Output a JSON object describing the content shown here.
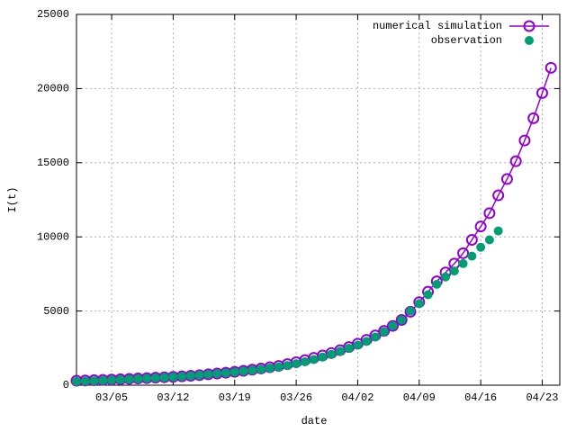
{
  "chart_data": {
    "type": "line",
    "xlabel": "date",
    "ylabel": "I(t)",
    "xlim": [
      "03/01",
      "04/25"
    ],
    "xticks": [
      "03/05",
      "03/12",
      "03/19",
      "03/26",
      "04/02",
      "04/09",
      "04/16",
      "04/23"
    ],
    "ylim": [
      0,
      25000
    ],
    "yticks": [
      0,
      5000,
      10000,
      15000,
      20000,
      25000
    ],
    "grid": true,
    "legend": "top-right",
    "series": [
      {
        "name": "numerical simulation",
        "color": "#9400d3",
        "marker": "open-circle",
        "x": [
          "03/01",
          "03/02",
          "03/03",
          "03/04",
          "03/05",
          "03/06",
          "03/07",
          "03/08",
          "03/09",
          "03/10",
          "03/11",
          "03/12",
          "03/13",
          "03/14",
          "03/15",
          "03/16",
          "03/17",
          "03/18",
          "03/19",
          "03/20",
          "03/21",
          "03/22",
          "03/23",
          "03/24",
          "03/25",
          "03/26",
          "03/27",
          "03/28",
          "03/29",
          "03/30",
          "03/31",
          "04/01",
          "04/02",
          "04/03",
          "04/04",
          "04/05",
          "04/06",
          "04/07",
          "04/08",
          "04/09",
          "04/10",
          "04/11",
          "04/12",
          "04/13",
          "04/14",
          "04/15",
          "04/16",
          "04/17",
          "04/18",
          "04/19",
          "04/20",
          "04/21",
          "04/22",
          "04/23",
          "04/24"
        ],
        "values": [
          300,
          318,
          338,
          358,
          380,
          403,
          427,
          452,
          479,
          508,
          534,
          560,
          597,
          636,
          678,
          737,
          787,
          842,
          900,
          970,
          1045,
          1125,
          1210,
          1300,
          1420,
          1550,
          1690,
          1840,
          2000,
          2170,
          2360,
          2570,
          2800,
          3060,
          3350,
          3660,
          4000,
          4400,
          4950,
          5600,
          6300,
          7000,
          7600,
          8200,
          8900,
          9800,
          10700,
          11600,
          12800,
          13900,
          15100,
          16500,
          18000,
          19700,
          21400
        ]
      },
      {
        "name": "observation",
        "color": "#009e73",
        "marker": "filled-circle",
        "x": [
          "03/01",
          "03/02",
          "03/03",
          "03/04",
          "03/05",
          "03/06",
          "03/07",
          "03/08",
          "03/09",
          "03/10",
          "03/11",
          "03/12",
          "03/13",
          "03/14",
          "03/15",
          "03/16",
          "03/17",
          "03/18",
          "03/19",
          "03/20",
          "03/21",
          "03/22",
          "03/23",
          "03/24",
          "03/25",
          "03/26",
          "03/27",
          "03/28",
          "03/29",
          "03/30",
          "03/31",
          "04/01",
          "04/02",
          "04/03",
          "04/04",
          "04/05",
          "04/06",
          "04/07",
          "04/08",
          "04/09",
          "04/10",
          "04/11",
          "04/12",
          "04/13",
          "04/14",
          "04/15",
          "04/16",
          "04/17",
          "04/18"
        ],
        "values": [
          250,
          270,
          295,
          320,
          345,
          375,
          400,
          430,
          460,
          490,
          520,
          550,
          590,
          630,
          680,
          730,
          780,
          830,
          890,
          950,
          1010,
          1080,
          1150,
          1230,
          1330,
          1450,
          1580,
          1730,
          1900,
          2080,
          2280,
          2490,
          2700,
          2950,
          3250,
          3600,
          4000,
          4400,
          5000,
          5500,
          6100,
          6800,
          7300,
          7700,
          8200,
          8700,
          9300,
          9800,
          10400
        ]
      }
    ]
  }
}
